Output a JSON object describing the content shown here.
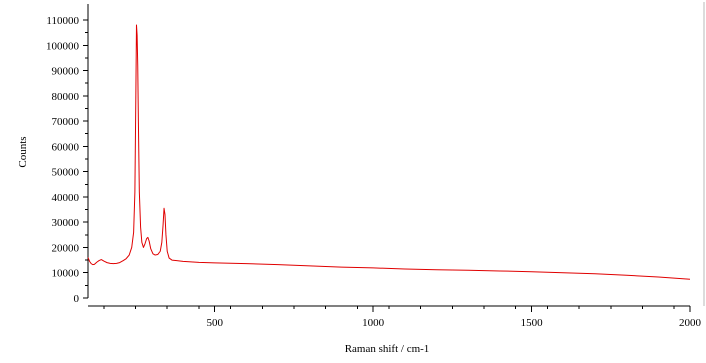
{
  "chart_data": {
    "type": "line",
    "title": "",
    "xlabel": "Raman shift / cm-1",
    "ylabel": "Counts",
    "xlim": [
      100,
      2000
    ],
    "ylim": [
      0,
      115000
    ],
    "x_ticks": [
      500,
      1000,
      1500,
      2000
    ],
    "y_ticks": [
      0,
      10000,
      20000,
      30000,
      40000,
      50000,
      60000,
      70000,
      80000,
      90000,
      100000,
      110000
    ],
    "grid": false,
    "line_color": "#e00000",
    "series": [
      {
        "points": [
          [
            100,
            16000
          ],
          [
            105,
            14500
          ],
          [
            110,
            13600
          ],
          [
            115,
            13200
          ],
          [
            120,
            13300
          ],
          [
            128,
            14200
          ],
          [
            135,
            14800
          ],
          [
            142,
            15200
          ],
          [
            150,
            14600
          ],
          [
            160,
            14000
          ],
          [
            170,
            13700
          ],
          [
            180,
            13600
          ],
          [
            190,
            13700
          ],
          [
            200,
            14000
          ],
          [
            210,
            14700
          ],
          [
            220,
            15500
          ],
          [
            230,
            17000
          ],
          [
            238,
            20000
          ],
          [
            244,
            26000
          ],
          [
            248,
            42000
          ],
          [
            251,
            80000
          ],
          [
            253,
            108000
          ],
          [
            255,
            104000
          ],
          [
            257,
            92000
          ],
          [
            259,
            70000
          ],
          [
            262,
            42000
          ],
          [
            266,
            28000
          ],
          [
            270,
            22000
          ],
          [
            275,
            20000
          ],
          [
            280,
            21500
          ],
          [
            285,
            23500
          ],
          [
            289,
            24000
          ],
          [
            293,
            22500
          ],
          [
            298,
            19500
          ],
          [
            305,
            17500
          ],
          [
            312,
            17000
          ],
          [
            320,
            17200
          ],
          [
            328,
            18500
          ],
          [
            333,
            22000
          ],
          [
            337,
            29000
          ],
          [
            340,
            35500
          ],
          [
            343,
            33000
          ],
          [
            346,
            25000
          ],
          [
            350,
            18500
          ],
          [
            356,
            15800
          ],
          [
            365,
            15000
          ],
          [
            380,
            14800
          ],
          [
            400,
            14500
          ],
          [
            450,
            14100
          ],
          [
            500,
            13900
          ],
          [
            600,
            13600
          ],
          [
            700,
            13200
          ],
          [
            800,
            12700
          ],
          [
            900,
            12200
          ],
          [
            1000,
            11900
          ],
          [
            1100,
            11500
          ],
          [
            1200,
            11200
          ],
          [
            1300,
            11000
          ],
          [
            1400,
            10700
          ],
          [
            1500,
            10400
          ],
          [
            1600,
            10000
          ],
          [
            1700,
            9600
          ],
          [
            1800,
            9000
          ],
          [
            1900,
            8300
          ],
          [
            2000,
            7400
          ]
        ]
      }
    ]
  }
}
